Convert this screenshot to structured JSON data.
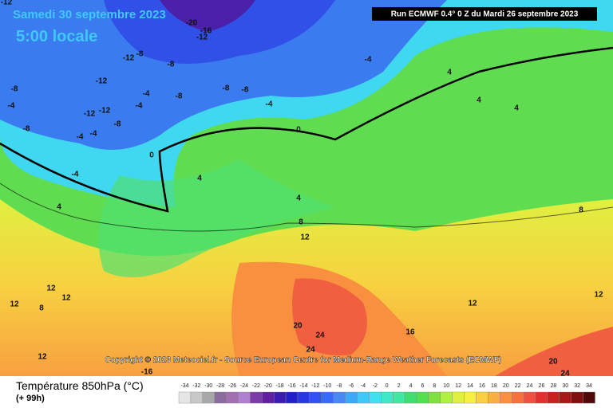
{
  "header": {
    "date": "Samedi 30 septembre 2023",
    "time": "5:00 locale",
    "run": "Run ECMWF 0.4° 0 Z du Mardi 26 septembre 2023"
  },
  "copyright": "Copyright © 2023 Meteociel.fr - Source European Centre for Medium-Range Weather Forecasts (ECMWF)",
  "contour_labels": [
    -12,
    -20,
    -16,
    -12,
    -12,
    -8,
    -8,
    -4,
    4,
    -12,
    -8,
    -4,
    -8,
    -8,
    -8,
    -4,
    -4,
    -12,
    -12,
    -4,
    4,
    4,
    -8,
    -8,
    -4,
    -4,
    0,
    0,
    -4,
    4,
    4,
    4,
    8,
    8,
    12,
    12,
    12,
    12,
    8,
    12,
    12,
    20,
    24,
    16,
    24,
    12,
    20,
    -16,
    24
  ],
  "legend": {
    "title": "Température 850hPa (°C)",
    "subtitle": "(+ 99h)",
    "values": [
      -34,
      -32,
      -30,
      -28,
      -26,
      -24,
      -22,
      -20,
      -18,
      -16,
      -14,
      -12,
      -10,
      -8,
      -6,
      -4,
      -2,
      0,
      2,
      4,
      6,
      8,
      10,
      12,
      14,
      16,
      18,
      20,
      22,
      24,
      26,
      28,
      30,
      32,
      34
    ],
    "colors": [
      "#e6e6e6",
      "#c8c8c8",
      "#a8a8a8",
      "#8c6c9c",
      "#a070b0",
      "#b080d0",
      "#7c3ca8",
      "#6020a0",
      "#3c1cb0",
      "#2020c8",
      "#2838e0",
      "#3050f0",
      "#3a6af8",
      "#4a88f8",
      "#3ca8f8",
      "#40c8f8",
      "#40e0f0",
      "#40e8c8",
      "#40e8a0",
      "#40e070",
      "#50e050",
      "#80e040",
      "#b0f040",
      "#e0f040",
      "#f8f040",
      "#f8d040",
      "#f8b040",
      "#f89040",
      "#f87040",
      "#f05040",
      "#e03030",
      "#c82020",
      "#a81818",
      "#801010",
      "#500808"
    ]
  }
}
